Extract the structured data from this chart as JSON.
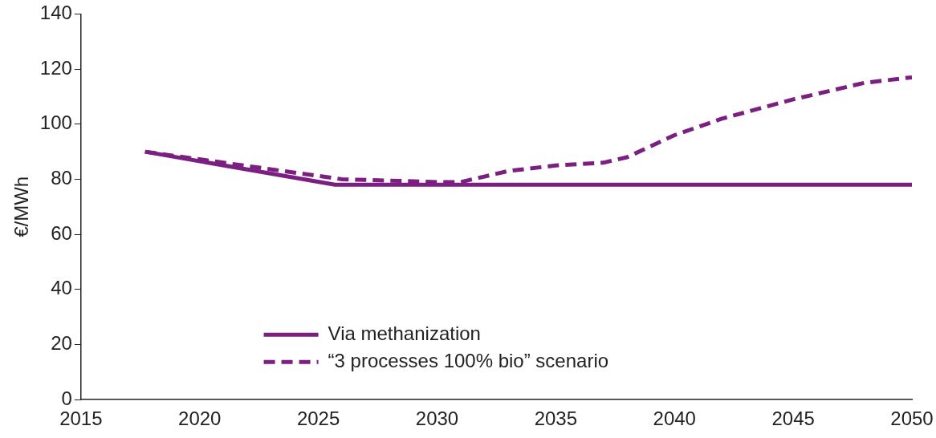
{
  "chart_data": {
    "type": "line",
    "ylabel": "€/MWh",
    "x": [
      2017.7,
      2025.7,
      2030,
      2050
    ],
    "xlim": [
      2015,
      2050
    ],
    "xticks": [
      2015,
      2020,
      2025,
      2030,
      2035,
      2040,
      2045,
      2050
    ],
    "ylim": [
      0,
      140
    ],
    "yticks": [
      0,
      20,
      40,
      60,
      80,
      100,
      120,
      140
    ],
    "grid": false,
    "legend": "bottom",
    "marker": "none",
    "series": [
      {
        "name": "Via methanization",
        "color": "#7b1f80",
        "line_style": "solid",
        "values": [
          90,
          78,
          78,
          78
        ]
      },
      {
        "name": "“3 processes 100% bio” scenario",
        "color": "#7b1f80",
        "line_style": "dashed",
        "x": [
          2017.7,
          2026,
          2030,
          2031,
          2033,
          2035,
          2037,
          2038,
          2039,
          2040,
          2042,
          2045,
          2048,
          2050
        ],
        "values": [
          90,
          80,
          79,
          79,
          83,
          85,
          86,
          88,
          92,
          96,
          102,
          109,
          115,
          117
        ]
      }
    ]
  }
}
